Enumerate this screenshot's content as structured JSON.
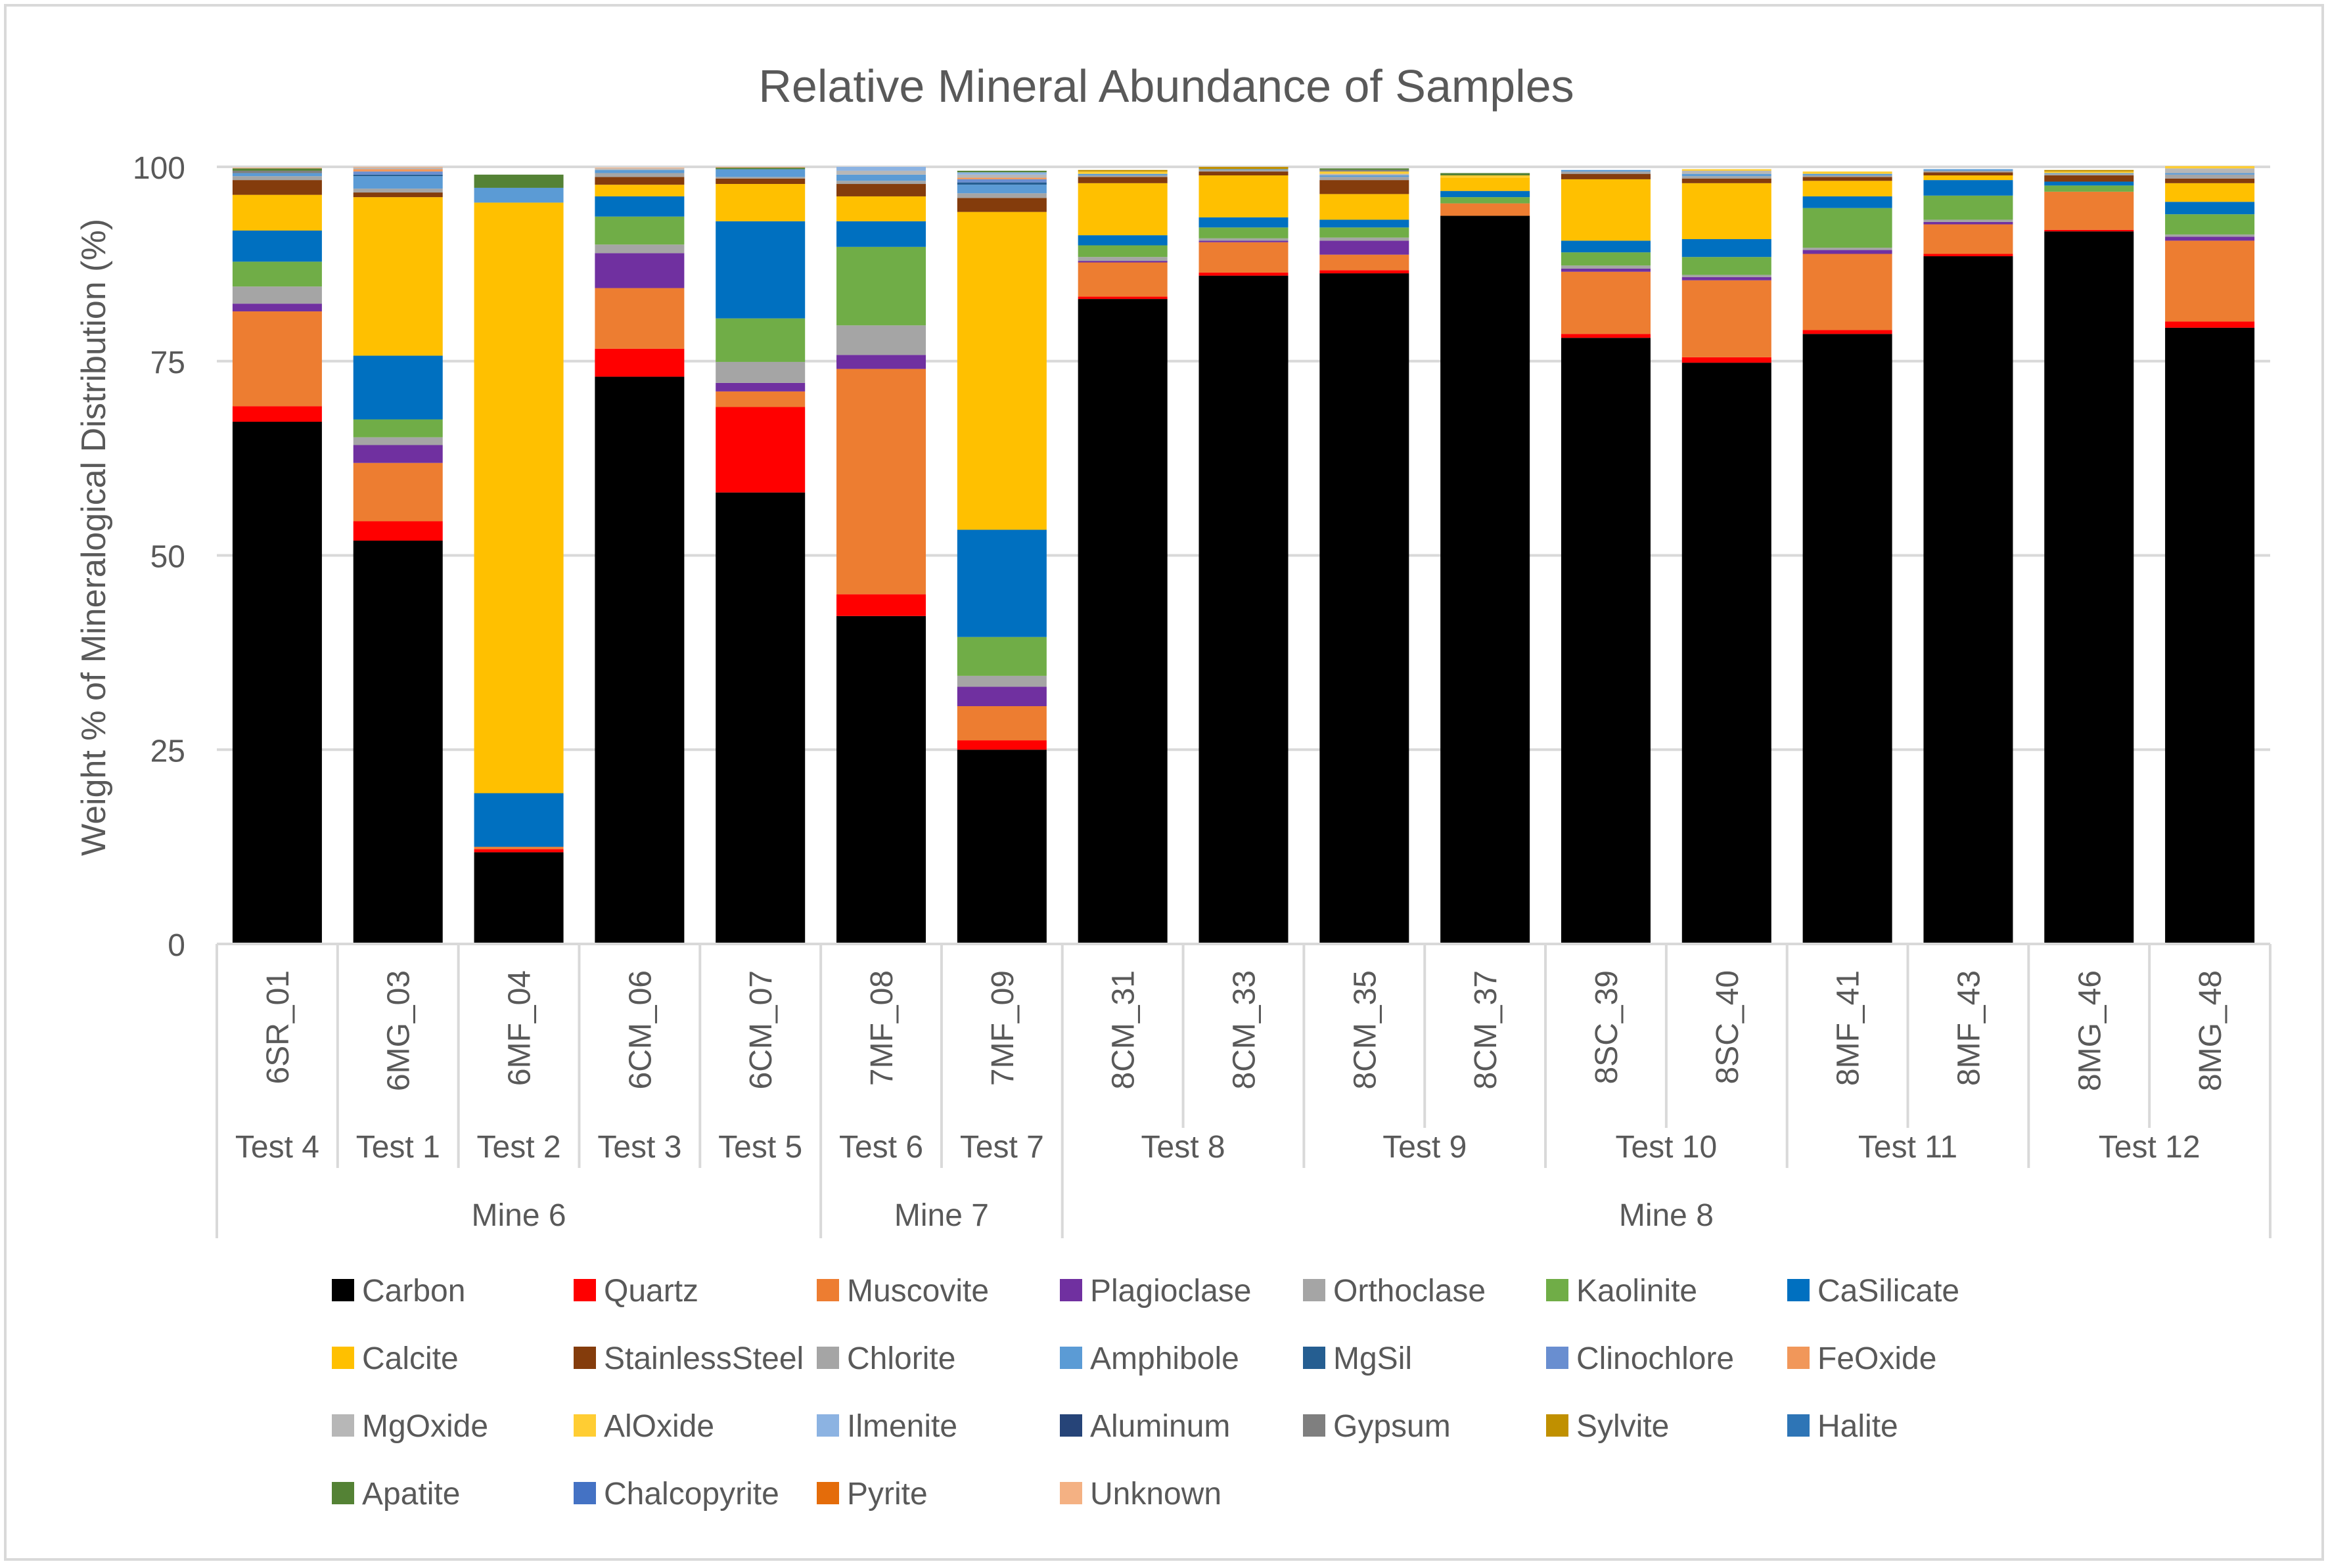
{
  "chart_data": {
    "type": "bar",
    "stacked": true,
    "title": "Relative Mineral Abundance of Samples",
    "xlabel": "",
    "ylabel": "Weight % of Mineralogical Distribution (%)",
    "ylim": [
      0,
      100
    ],
    "yticks": [
      "0",
      "25",
      "50",
      "75",
      "100"
    ],
    "grid": true,
    "legend_position": "bottom",
    "categories": [
      "6SR_01",
      "6MG_03",
      "6MF_04",
      "6CM_06",
      "6CM_07",
      "7MF_08",
      "7MF_09",
      "8CM_31",
      "8CM_33",
      "8CM_35",
      "8CM_37",
      "8SC_39",
      "8SC_40",
      "8MF_41",
      "8MF_43",
      "8MG_46",
      "8MG_48"
    ],
    "tests": [
      {
        "label": "Test 4",
        "count": 1
      },
      {
        "label": "Test 1",
        "count": 1
      },
      {
        "label": "Test 2",
        "count": 1
      },
      {
        "label": "Test 3",
        "count": 1
      },
      {
        "label": "Test 5",
        "count": 1
      },
      {
        "label": "Test 6",
        "count": 1
      },
      {
        "label": "Test 7",
        "count": 1
      },
      {
        "label": "Test 8",
        "count": 2
      },
      {
        "label": "Test 9",
        "count": 2
      },
      {
        "label": "Test 10",
        "count": 2
      },
      {
        "label": "Test 11",
        "count": 2
      },
      {
        "label": "Test 12",
        "count": 2
      }
    ],
    "mines": [
      {
        "label": "Mine 6",
        "count": 5
      },
      {
        "label": "Mine 7",
        "count": 2
      },
      {
        "label": "Mine 8",
        "count": 10
      }
    ],
    "series": [
      {
        "name": "Carbon",
        "color": "#000000",
        "values": [
          67.2,
          51.9,
          11.8,
          73.0,
          58.1,
          42.2,
          25.0,
          83.0,
          86.0,
          86.3,
          93.7,
          78.0,
          74.8,
          78.5,
          88.5,
          91.7,
          79.3
        ]
      },
      {
        "name": "Quartz",
        "color": "#FF0000",
        "values": [
          2.0,
          2.5,
          0.4,
          3.6,
          11.0,
          2.8,
          1.2,
          0.3,
          0.4,
          0.4,
          0.0,
          0.5,
          0.7,
          0.5,
          0.3,
          0.2,
          0.8
        ]
      },
      {
        "name": "Muscovite",
        "color": "#ED7D31",
        "values": [
          12.2,
          7.5,
          0.3,
          7.8,
          2.0,
          29.0,
          4.4,
          4.4,
          3.9,
          2.0,
          1.6,
          8.0,
          9.9,
          9.8,
          3.8,
          4.9,
          10.4
        ]
      },
      {
        "name": "Plagioclase",
        "color": "#7030A0",
        "values": [
          1.0,
          2.3,
          0.0,
          4.5,
          1.1,
          1.8,
          2.5,
          0.2,
          0.2,
          1.8,
          0.0,
          0.4,
          0.4,
          0.5,
          0.3,
          0.0,
          0.5
        ]
      },
      {
        "name": "Orthoclase",
        "color": "#A5A5A5",
        "values": [
          2.2,
          1.0,
          0.0,
          1.1,
          2.7,
          3.8,
          1.4,
          0.5,
          0.3,
          0.4,
          0.0,
          0.4,
          0.3,
          0.3,
          0.3,
          0.0,
          0.3
        ]
      },
      {
        "name": "Kaolinite",
        "color": "#70AD47",
        "values": [
          3.2,
          2.3,
          0.0,
          3.6,
          5.6,
          10.1,
          5.0,
          1.5,
          1.4,
          1.3,
          0.8,
          1.7,
          2.3,
          5.1,
          3.1,
          0.8,
          2.6
        ]
      },
      {
        "name": "CaSilicate",
        "color": "#0070C0",
        "values": [
          4.0,
          8.2,
          6.9,
          2.6,
          12.5,
          3.3,
          13.8,
          1.3,
          1.3,
          1.0,
          0.8,
          1.5,
          2.3,
          1.5,
          2.0,
          0.5,
          1.6
        ]
      },
      {
        "name": "Calcite",
        "color": "#FFC000",
        "values": [
          4.6,
          20.4,
          76.0,
          1.5,
          4.8,
          3.2,
          40.9,
          6.7,
          5.4,
          3.3,
          1.7,
          7.9,
          7.2,
          2.0,
          0.6,
          0.0,
          2.4
        ]
      },
      {
        "name": "StainlessSteel",
        "color": "#843C0C",
        "values": [
          1.9,
          0.6,
          0.0,
          1.0,
          0.7,
          1.6,
          1.8,
          0.8,
          0.5,
          1.8,
          0.0,
          0.7,
          0.6,
          0.5,
          0.4,
          0.8,
          0.6
        ]
      },
      {
        "name": "Chlorite",
        "color": "#A5A5A5",
        "values": [
          0.5,
          0.5,
          0.0,
          0.5,
          0.2,
          0.4,
          0.6,
          0.2,
          0.2,
          0.4,
          0.0,
          0.3,
          0.3,
          0.2,
          0.2,
          0.2,
          0.5
        ]
      },
      {
        "name": "Amphibole",
        "color": "#5B9BD5",
        "values": [
          0.4,
          1.6,
          1.9,
          0.4,
          1.0,
          0.8,
          1.1,
          0.2,
          0.1,
          0.2,
          0.0,
          0.2,
          0.3,
          0.2,
          0.2,
          0.1,
          0.2
        ]
      },
      {
        "name": "MgSil",
        "color": "#255E91",
        "values": [
          0.0,
          0.2,
          0.0,
          0.0,
          0.0,
          0.0,
          0.3,
          0.0,
          0.0,
          0.0,
          0.0,
          0.0,
          0.0,
          0.0,
          0.0,
          0.0,
          0.0
        ]
      },
      {
        "name": "Clinochlore",
        "color": "#698ED0",
        "values": [
          0.0,
          0.4,
          0.0,
          0.0,
          0.0,
          0.0,
          0.4,
          0.0,
          0.0,
          0.0,
          0.0,
          0.0,
          0.0,
          0.0,
          0.0,
          0.0,
          0.0
        ]
      },
      {
        "name": "FeOxide",
        "color": "#F1975A",
        "values": [
          0.0,
          0.3,
          0.0,
          0.0,
          0.0,
          0.0,
          0.2,
          0.0,
          0.0,
          0.0,
          0.0,
          0.0,
          0.0,
          0.0,
          0.0,
          0.0,
          0.0
        ]
      },
      {
        "name": "MgOxide",
        "color": "#B7B7B7",
        "values": [
          0.0,
          0.2,
          0.0,
          0.2,
          0.0,
          0.5,
          0.4,
          0.0,
          0.0,
          0.2,
          0.0,
          0.0,
          0.4,
          0.0,
          0.0,
          0.0,
          0.6
        ]
      },
      {
        "name": "AlOxide",
        "color": "#FFCD33",
        "values": [
          0.0,
          0.0,
          0.0,
          0.0,
          0.0,
          0.0,
          0.0,
          0.3,
          0.0,
          0.3,
          0.3,
          0.0,
          0.2,
          0.3,
          0.0,
          0.2,
          0.3
        ]
      },
      {
        "name": "Ilmenite",
        "color": "#8CB3E2",
        "values": [
          0.0,
          0.0,
          0.0,
          0.0,
          0.0,
          0.5,
          0.3,
          0.0,
          0.0,
          0.0,
          0.0,
          0.0,
          0.0,
          0.0,
          0.0,
          0.0,
          0.0
        ]
      },
      {
        "name": "Aluminum",
        "color": "#264478",
        "values": [
          0.0,
          0.0,
          0.0,
          0.0,
          0.0,
          0.0,
          0.0,
          0.0,
          0.0,
          0.0,
          0.0,
          0.0,
          0.0,
          0.0,
          0.0,
          0.0,
          0.0
        ]
      },
      {
        "name": "Gypsum",
        "color": "#7F7F7F",
        "values": [
          0.3,
          0.0,
          0.0,
          0.0,
          0.0,
          0.0,
          0.0,
          0.0,
          0.0,
          0.2,
          0.0,
          0.0,
          0.0,
          0.0,
          0.0,
          0.0,
          0.0
        ]
      },
      {
        "name": "Sylvite",
        "color": "#C09000",
        "values": [
          0.0,
          0.0,
          0.0,
          0.0,
          0.0,
          0.0,
          0.0,
          0.2,
          0.3,
          0.0,
          0.0,
          0.0,
          0.0,
          0.0,
          0.0,
          0.2,
          0.0
        ]
      },
      {
        "name": "Halite",
        "color": "#2E75B6",
        "values": [
          0.0,
          0.0,
          0.0,
          0.0,
          0.0,
          0.0,
          0.0,
          0.0,
          0.0,
          0.0,
          0.0,
          0.0,
          0.0,
          0.0,
          0.0,
          0.0,
          0.0
        ]
      },
      {
        "name": "Apatite",
        "color": "#548235",
        "values": [
          0.3,
          0.0,
          1.7,
          0.0,
          0.2,
          0.0,
          0.2,
          0.0,
          0.0,
          0.2,
          0.3,
          0.0,
          0.0,
          0.0,
          0.0,
          0.0,
          0.0
        ]
      },
      {
        "name": "Chalcopyrite",
        "color": "#4472C4",
        "values": [
          0.0,
          0.0,
          0.0,
          0.0,
          0.0,
          0.0,
          0.0,
          0.0,
          0.0,
          0.0,
          0.0,
          0.0,
          0.0,
          0.0,
          0.0,
          0.0,
          0.0
        ]
      },
      {
        "name": "Pyrite",
        "color": "#E46C0A",
        "values": [
          0.0,
          0.0,
          0.0,
          0.0,
          0.0,
          0.0,
          0.0,
          0.0,
          0.0,
          0.0,
          0.0,
          0.0,
          0.0,
          0.0,
          0.0,
          0.0,
          0.0
        ]
      },
      {
        "name": "Unknown",
        "color": "#F4B183",
        "values": [
          0.1,
          0.1,
          0.0,
          0.1,
          0.1,
          0.0,
          0.0,
          0.0,
          0.0,
          0.0,
          0.0,
          0.0,
          0.0,
          0.0,
          0.0,
          0.0,
          0.0
        ]
      }
    ]
  }
}
